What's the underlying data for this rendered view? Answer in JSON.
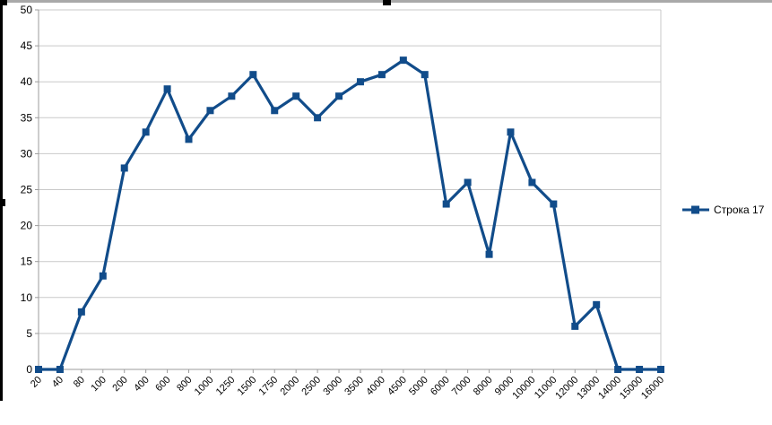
{
  "chart_data": {
    "type": "line",
    "title": "",
    "categories": [
      "20",
      "40",
      "80",
      "100",
      "200",
      "400",
      "600",
      "800",
      "1000",
      "1250",
      "1500",
      "1750",
      "2000",
      "2500",
      "3000",
      "3500",
      "4000",
      "4500",
      "5000",
      "6000",
      "7000",
      "8000",
      "9000",
      "10000",
      "11000",
      "12000",
      "13000",
      "14000",
      "15000",
      "16000"
    ],
    "series": [
      {
        "name": "Строка 17",
        "values": [
          0,
          0,
          8,
          13,
          28,
          33,
          39,
          32,
          36,
          38,
          41,
          36,
          38,
          35,
          38,
          40,
          41,
          43,
          41,
          23,
          26,
          16,
          33,
          26,
          23,
          6,
          9,
          0,
          0,
          0
        ]
      }
    ],
    "xlabel": "",
    "ylabel": "",
    "ylim": [
      0,
      50
    ],
    "y_ticks": [
      "0",
      "5",
      "10",
      "15",
      "20",
      "25",
      "30",
      "35",
      "40",
      "45",
      "50"
    ],
    "grid": true,
    "legend_position": "right",
    "marker": "square",
    "x_label_rotation_deg": -45
  },
  "colors": {
    "series_line": "#114C8A",
    "gridline": "#c9c9c9",
    "axis": "#9b9b9b",
    "text": "#000000",
    "selection_border_top": "#a9a9a9",
    "selection_border_left": "#000000",
    "selection_handle": "#000000",
    "background": "#ffffff"
  },
  "legend": {
    "label": "Строка 17"
  }
}
